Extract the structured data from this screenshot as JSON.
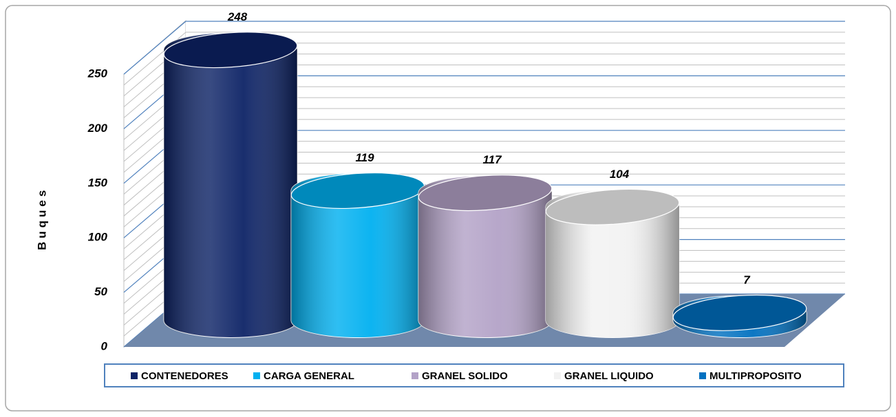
{
  "chart_data": {
    "type": "cylinder",
    "y_label": "Buques",
    "categories": [
      "CONTENEDORES",
      "CARGA GENERAL",
      "GRANEL SOLIDO",
      "GRANEL LIQUIDO",
      "MULTIPROPOSITO"
    ],
    "values": [
      248,
      119,
      117,
      104,
      7
    ],
    "colors": [
      "#0d2366",
      "#00b0f0",
      "#b3a2c7",
      "#f2f2f2",
      "#0070c0"
    ],
    "ylim": [
      0,
      250
    ],
    "yticks": [
      0,
      50,
      100,
      150,
      200,
      250
    ],
    "grid": true,
    "legend": "bottom"
  }
}
